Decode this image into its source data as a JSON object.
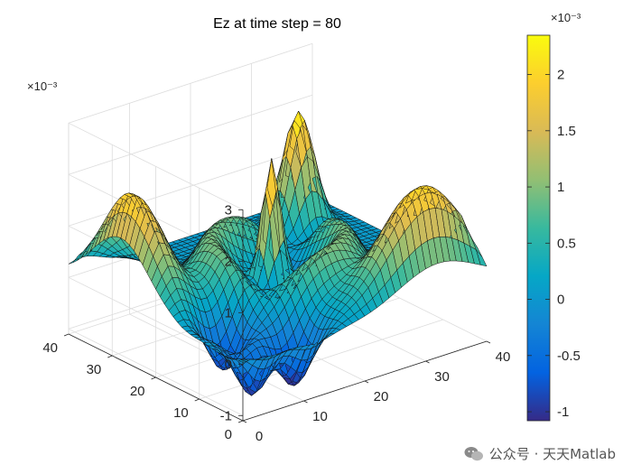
{
  "chart_data": {
    "type": "surface",
    "title": "Ez at time step = 80",
    "xlim": [
      0,
      40
    ],
    "ylim": [
      0,
      40
    ],
    "zlim": [
      -1.1,
      3
    ],
    "x_ticks": [
      "0",
      "10",
      "20",
      "30",
      "40"
    ],
    "y_ticks": [
      "0",
      "10",
      "20",
      "30",
      "40"
    ],
    "z_ticks": [
      "-1",
      "0",
      "1",
      "2",
      "3"
    ],
    "z_exponent": "×10⁻³",
    "colorbar": {
      "ticks": [
        "-1",
        "-0.5",
        "0",
        "0.5",
        "1",
        "1.5",
        "2"
      ],
      "range": [
        -1.08,
        2.35
      ],
      "exponent": "×10⁻³",
      "colormap": "parula"
    },
    "grid": true,
    "grid_size": 41,
    "surface_features": [
      {
        "description": "left ridge peak",
        "x": 2,
        "y": 28,
        "z": 2.0
      },
      {
        "description": "center-front spike",
        "x": 19,
        "y": 20,
        "z": 2.4
      },
      {
        "description": "back peak",
        "x": 32,
        "y": 32,
        "z": 2.3
      },
      {
        "description": "right ridge peak",
        "x": 32,
        "y": 4,
        "z": 2.0
      }
    ]
  },
  "watermark": {
    "text": "公众号 · 天天Matlab"
  }
}
